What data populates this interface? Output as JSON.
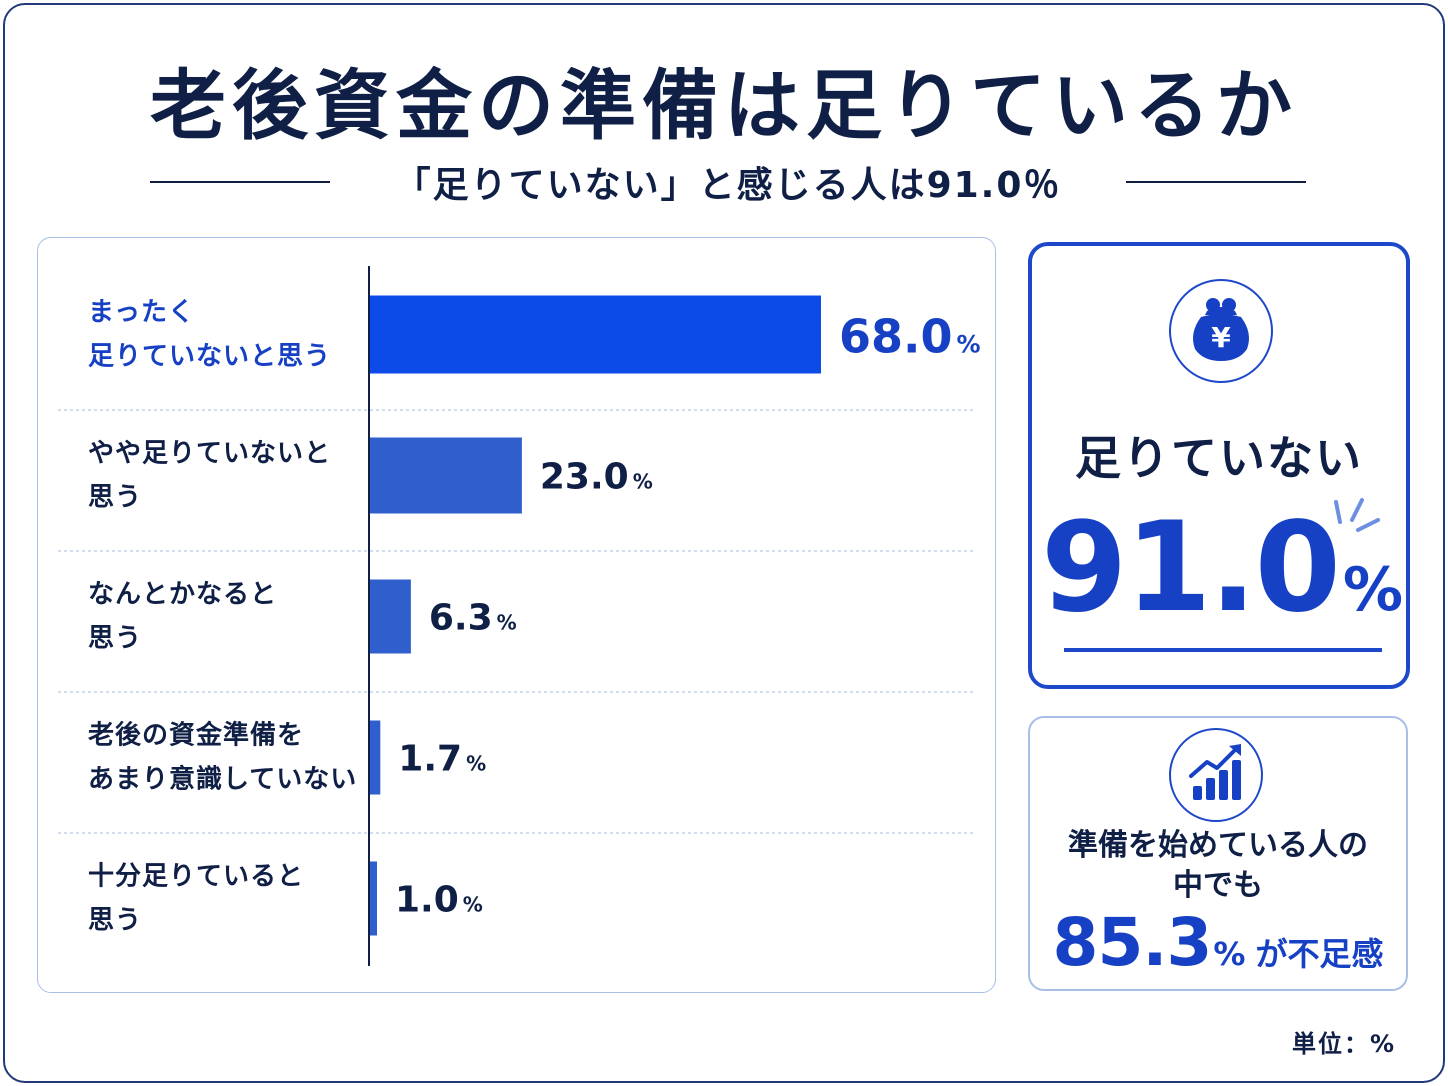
{
  "title": "老後資金の準備は足りているか",
  "subtitle": "「足りていない」と感じる人は91.0％",
  "colors": {
    "navy": "#0f1f45",
    "accent": "#1741c4",
    "highlight_bar": "#0d4be8",
    "bar": "#2f5fcc",
    "panel_border": "#a9bfe6"
  },
  "chart_data": {
    "type": "bar",
    "orientation": "horizontal",
    "categories": [
      [
        "まったく",
        "足りていないと思う"
      ],
      [
        "やや足りていないと",
        "思う"
      ],
      [
        "なんとかなると",
        "思う"
      ],
      [
        "老後の資金準備を",
        "あまり意識していない"
      ],
      [
        "十分足りていると",
        "思う"
      ]
    ],
    "values": [
      68.0,
      23.0,
      6.3,
      1.7,
      1.0
    ],
    "value_labels": [
      "68.0",
      "23.0",
      "6.3",
      "1.7",
      "1.0"
    ],
    "unit": "%",
    "highlight_index": 0,
    "xlim": [
      0,
      68.0
    ],
    "grid": false
  },
  "summary_card": {
    "icon": "purse-yen-icon",
    "label": "足りていない",
    "value": "91.0",
    "unit": "%"
  },
  "sub_card": {
    "icon": "bar-chart-growth-icon",
    "line1": "準備を始めている人の",
    "line2": "中でも",
    "value": "85.3",
    "unit": "%",
    "suffix": "が不足感"
  },
  "unit_note": "単位：%"
}
